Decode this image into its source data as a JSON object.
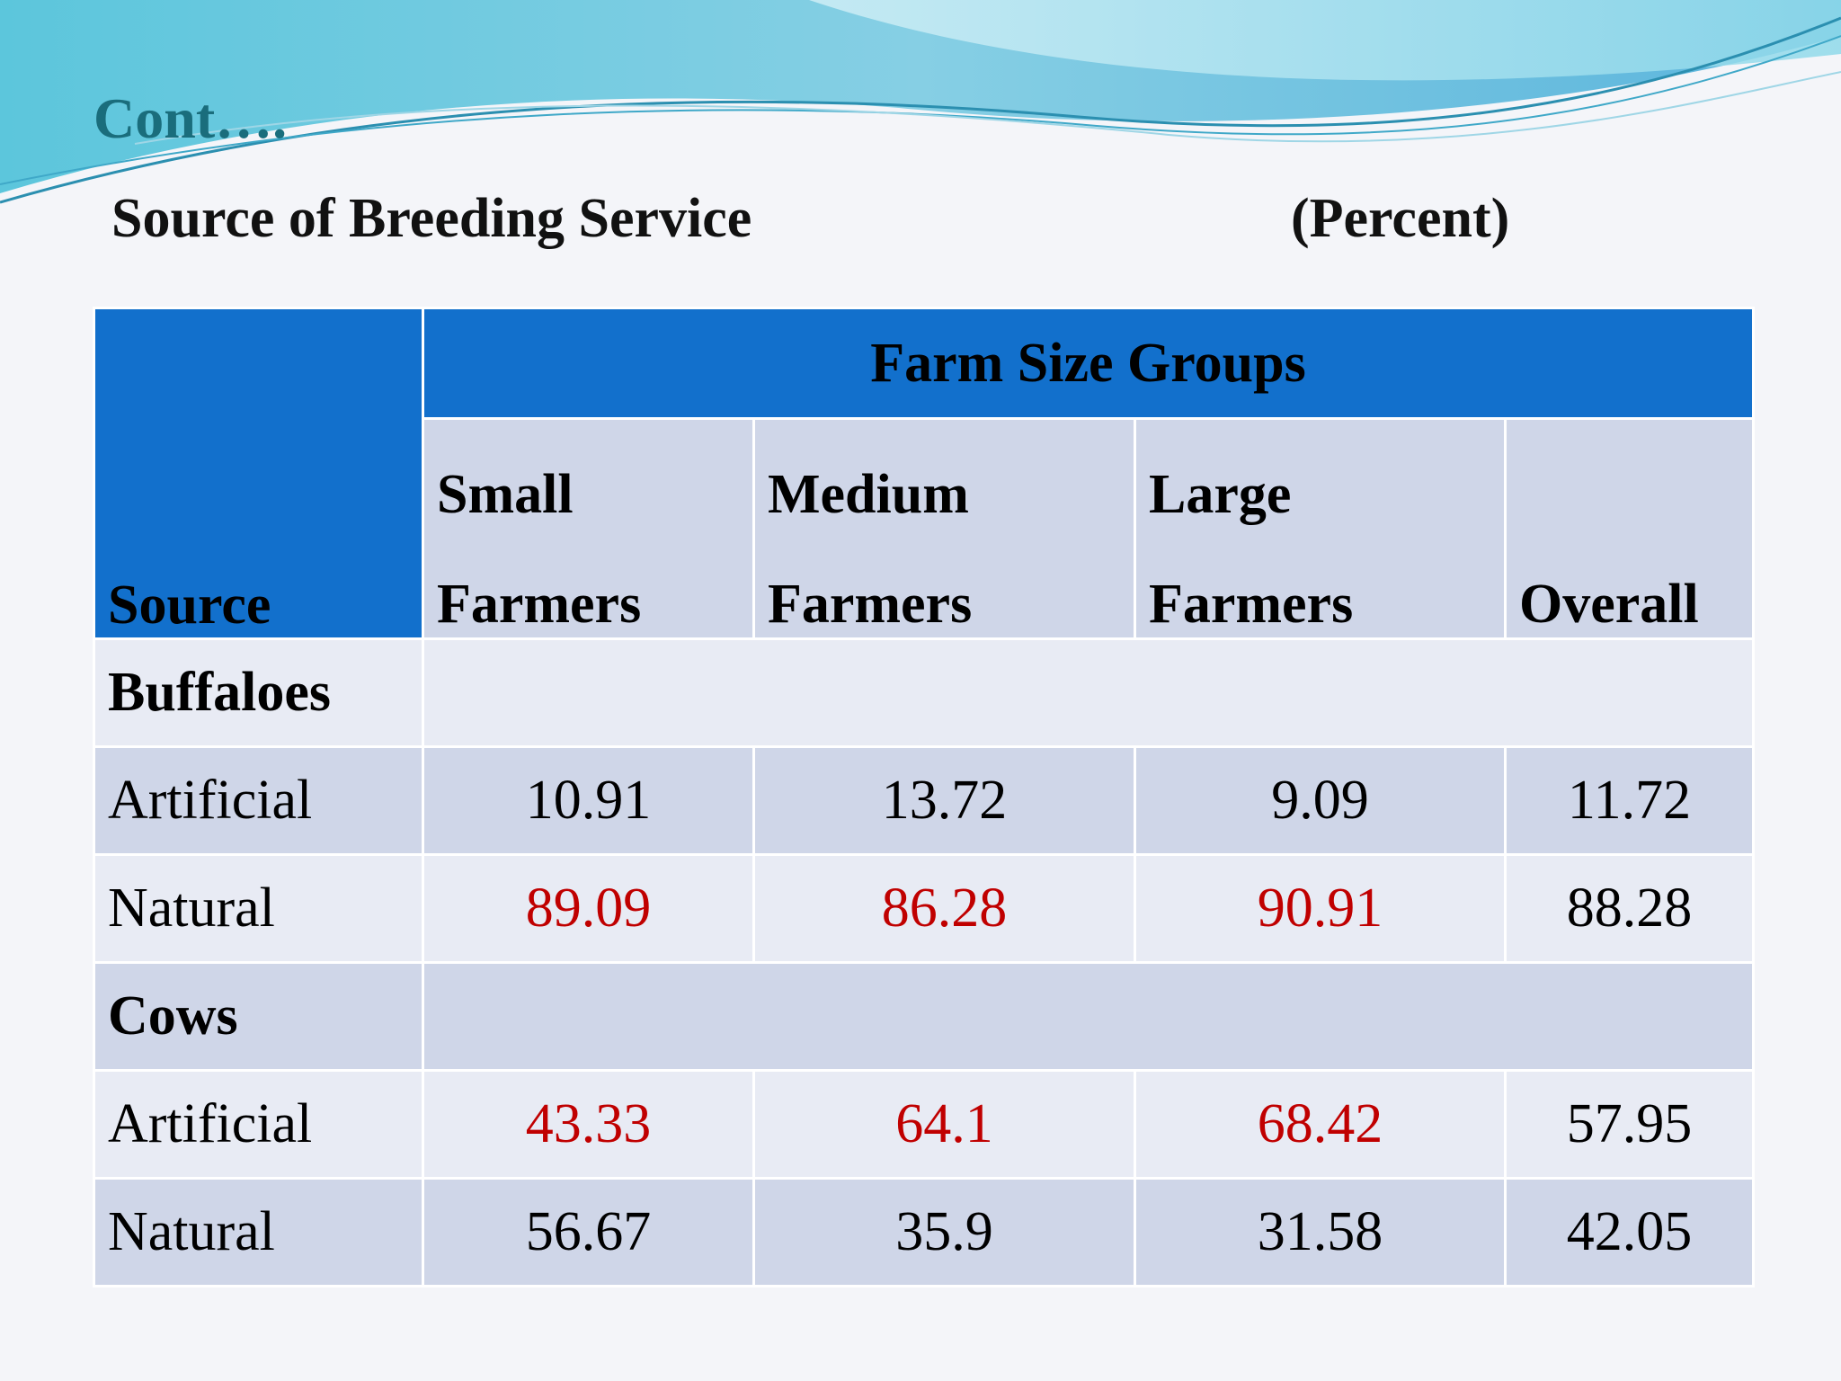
{
  "slide": {
    "title": "Cont….",
    "subtitle": "Source of Breeding Service",
    "unit": "(Percent)"
  },
  "colors": {
    "header_blue": "#1270cc",
    "row_dark": "#cfd6e8",
    "row_light": "#e8ebf4",
    "highlight_red": "#c00000",
    "title_teal": "#1a6d7c"
  },
  "table": {
    "source_header": "Source",
    "group_header": "Farm Size Groups",
    "columns": [
      {
        "line1": "Small",
        "line2": "Farmers"
      },
      {
        "line1": "Medium",
        "line2": "Farmers"
      },
      {
        "line1": "Large",
        "line2": "Farmers"
      },
      {
        "line1": "",
        "line2": "Overall"
      }
    ],
    "sections": [
      {
        "label": "Buffaloes",
        "rows": [
          {
            "label": "Artificial",
            "values": [
              "10.91",
              "13.72",
              "9.09",
              "11.72"
            ],
            "highlight": [
              false,
              false,
              false,
              false
            ]
          },
          {
            "label": "Natural",
            "values": [
              "89.09",
              "86.28",
              "90.91",
              "88.28"
            ],
            "highlight": [
              true,
              true,
              true,
              false
            ]
          }
        ]
      },
      {
        "label": "Cows",
        "rows": [
          {
            "label": "Artificial",
            "values": [
              "43.33",
              "64.1",
              "68.42",
              "57.95"
            ],
            "highlight": [
              true,
              true,
              true,
              false
            ]
          },
          {
            "label": "Natural",
            "values": [
              "56.67",
              "35.9",
              "31.58",
              "42.05"
            ],
            "highlight": [
              false,
              false,
              false,
              false
            ]
          }
        ]
      }
    ]
  }
}
